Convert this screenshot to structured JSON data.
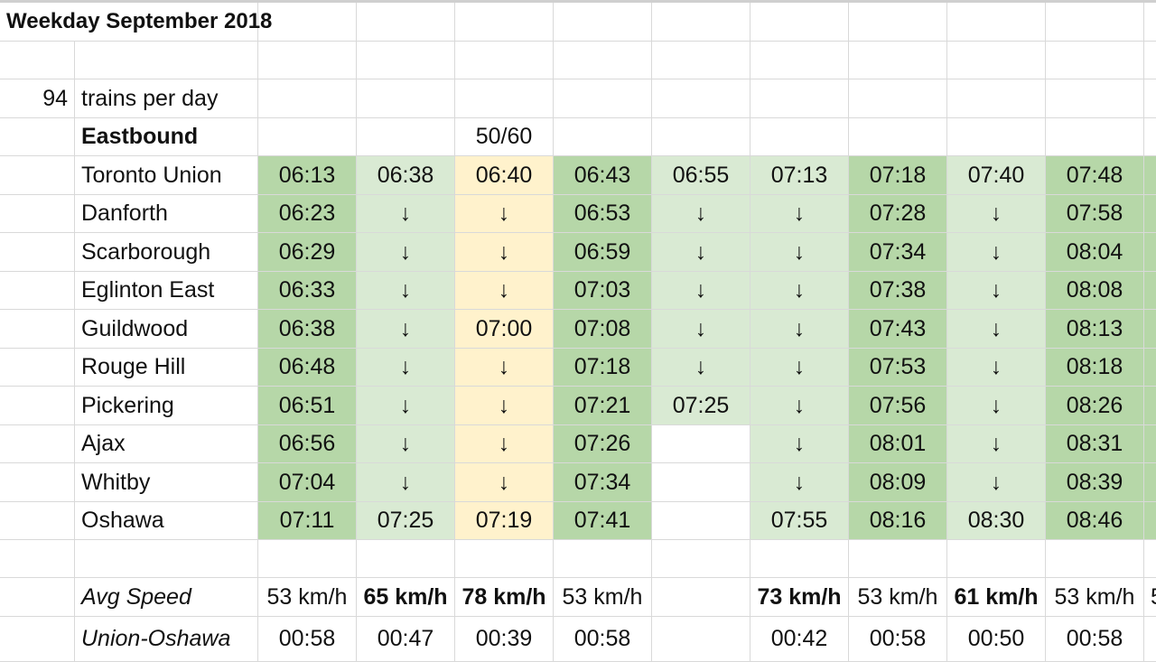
{
  "sheet": {
    "title": "Weekday September 2018",
    "trains_count": "94",
    "trains_label": "trains per day",
    "direction": "Eastbound",
    "note": "50/60",
    "down_glyph": "↓",
    "stations": [
      "Toronto Union",
      "Danforth",
      "Scarborough",
      "Eglinton East",
      "Guildwood",
      "Rouge Hill",
      "Pickering",
      "Ajax",
      "Whitby",
      "Oshawa"
    ],
    "trips": [
      {
        "shade": "dark",
        "times": [
          "06:13",
          "06:23",
          "06:29",
          "06:33",
          "06:38",
          "06:48",
          "06:51",
          "06:56",
          "07:04",
          "07:11"
        ],
        "avg_speed": "53 km/h",
        "avg_bold": false,
        "duration": "00:58"
      },
      {
        "shade": "light",
        "times": [
          "06:38",
          "↓",
          "↓",
          "↓",
          "↓",
          "↓",
          "↓",
          "↓",
          "↓",
          "07:25"
        ],
        "avg_speed": "65 km/h",
        "avg_bold": true,
        "duration": "00:47"
      },
      {
        "shade": "orange",
        "times": [
          "06:40",
          "↓",
          "↓",
          "↓",
          "07:00",
          "↓",
          "↓",
          "↓",
          "↓",
          "07:19"
        ],
        "avg_speed": "78 km/h",
        "avg_bold": true,
        "duration": "00:39"
      },
      {
        "shade": "dark",
        "times": [
          "06:43",
          "06:53",
          "06:59",
          "07:03",
          "07:08",
          "07:18",
          "07:21",
          "07:26",
          "07:34",
          "07:41"
        ],
        "avg_speed": "53 km/h",
        "avg_bold": false,
        "duration": "00:58"
      },
      {
        "shade": "light",
        "times": [
          "06:55",
          "↓",
          "↓",
          "↓",
          "↓",
          "↓",
          "07:25",
          "",
          "",
          ""
        ],
        "avg_speed": "",
        "avg_bold": false,
        "duration": ""
      },
      {
        "shade": "light",
        "times": [
          "07:13",
          "↓",
          "↓",
          "↓",
          "↓",
          "↓",
          "↓",
          "↓",
          "↓",
          "07:55"
        ],
        "avg_speed": "73 km/h",
        "avg_bold": true,
        "duration": "00:42"
      },
      {
        "shade": "dark",
        "times": [
          "07:18",
          "07:28",
          "07:34",
          "07:38",
          "07:43",
          "07:53",
          "07:56",
          "08:01",
          "08:09",
          "08:16"
        ],
        "avg_speed": "53 km/h",
        "avg_bold": false,
        "duration": "00:58"
      },
      {
        "shade": "light",
        "times": [
          "07:40",
          "↓",
          "↓",
          "↓",
          "↓",
          "↓",
          "↓",
          "↓",
          "↓",
          "08:30"
        ],
        "avg_speed": "61 km/h",
        "avg_bold": true,
        "duration": "00:50"
      },
      {
        "shade": "dark",
        "times": [
          "07:48",
          "07:58",
          "08:04",
          "08:08",
          "08:13",
          "08:18",
          "08:26",
          "08:31",
          "08:39",
          "08:46"
        ],
        "avg_speed": "53 km/h",
        "avg_bold": false,
        "duration": "00:58"
      },
      {
        "shade": "dark",
        "times": [
          "",
          "",
          "",
          "",
          "",
          "",
          "",
          "",
          "",
          ""
        ],
        "avg_speed": "5",
        "avg_bold": false,
        "duration": ""
      }
    ],
    "avg_speed_label": "Avg Speed",
    "route_label": "Union-Oshawa"
  },
  "colors": {
    "dark_green": "#b6d7a8",
    "light_green": "#d9ead3",
    "light_orange": "#fff2cc",
    "gridline": "#d9d9d9"
  }
}
